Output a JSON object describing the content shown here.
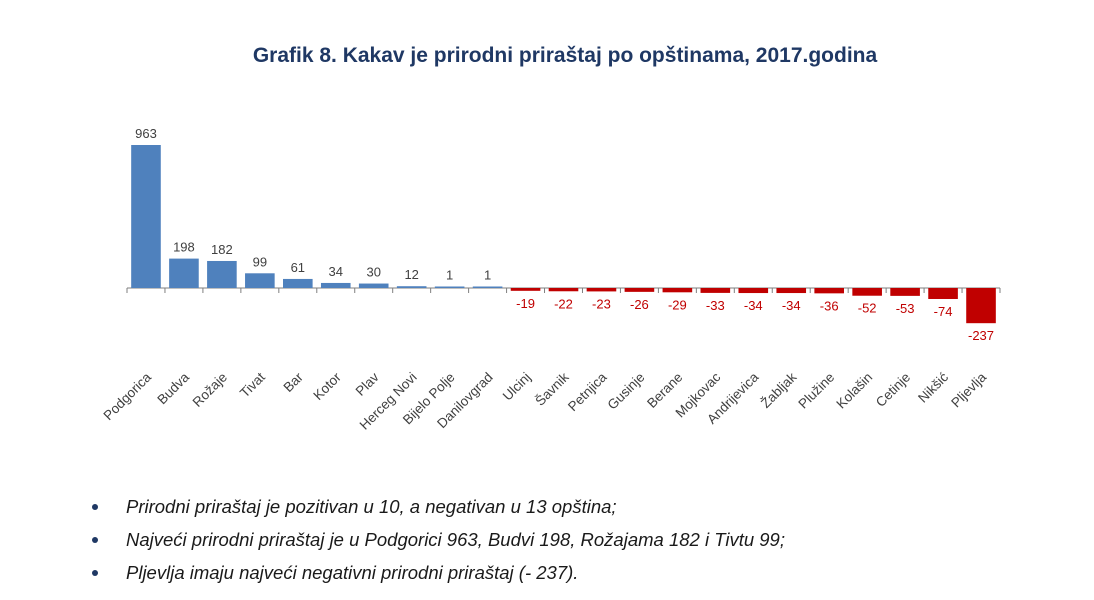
{
  "colors": {
    "title": "#1f3864",
    "positive": "#4f81bd",
    "negative": "#c00000",
    "positive_label": "#404040",
    "negative_label": "#c00000",
    "axis": "#7f7f7f",
    "tick_label": "#404040"
  },
  "chart_data": {
    "type": "bar",
    "title": "Grafik 8. Kakav je prirodni priraštaj po opštinama, 2017.godina",
    "xlabel": "",
    "ylabel": "",
    "categories": [
      "Podgorica",
      "Budva",
      "Rožaje",
      "Tivat",
      "Bar",
      "Kotor",
      "Plav",
      "Herceg Novi",
      "Bijelo Polje",
      "Danilovgrad",
      "Ulcinj",
      "Šavnik",
      "Petnjica",
      "Gusinje",
      "Berane",
      "Mojkovac",
      "Andrijevica",
      "Žabljak",
      "Plužine",
      "Kolašin",
      "Cetinje",
      "Nikšić",
      "Pljevlja"
    ],
    "values": [
      963,
      198,
      182,
      99,
      61,
      34,
      30,
      12,
      1,
      1,
      -19,
      -22,
      -23,
      -26,
      -29,
      -33,
      -34,
      -34,
      -36,
      -52,
      -53,
      -74,
      -237
    ],
    "data_labels": [
      "963",
      "198",
      "182",
      "99",
      "61",
      "34",
      "30",
      "12",
      "1",
      "1",
      "-19",
      "-22",
      "-23",
      "-26",
      "-29",
      "-33",
      "-34",
      "-34",
      "-36",
      "-52",
      "-53",
      "-74",
      "-237"
    ],
    "ylim": [
      -237,
      963
    ],
    "grid": false,
    "legend": "none"
  },
  "bullets": [
    "Prirodni priraštaj je pozitivan u 10, a negativan u 13 opština;",
    "Najveći prirodni priraštaj je u Podgorici 963, Budvi 198,  Rožajama 182 i Tivtu 99;",
    "Pljevlja imaju najveći negativni prirodni priraštaj (- 237)."
  ]
}
